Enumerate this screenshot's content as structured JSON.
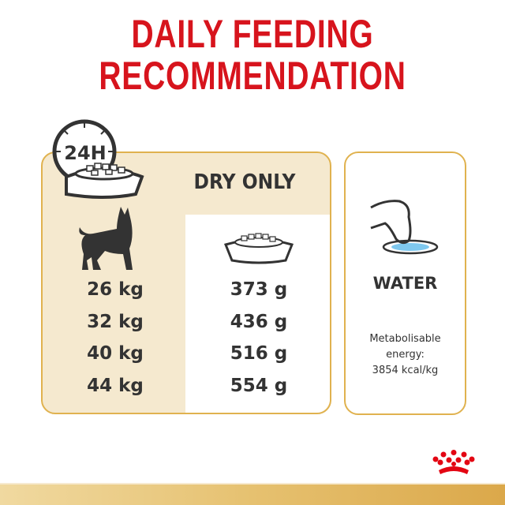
{
  "title": {
    "line1": "DAILY FEEDING",
    "line2": "RECOMMENDATION"
  },
  "clock_label": "24H",
  "dry_only": "DRY ONLY",
  "rows": [
    {
      "weight": "26 kg",
      "amount": "373 g"
    },
    {
      "weight": "32 kg",
      "amount": "436 g"
    },
    {
      "weight": "40 kg",
      "amount": "516 g"
    },
    {
      "weight": "44 kg",
      "amount": "554 g"
    }
  ],
  "water": {
    "label": "WATER",
    "energy_line1": "Metabolisable",
    "energy_line2": "energy:",
    "energy_line3": "3854 kcal/kg"
  },
  "colors": {
    "title": "#d7141d",
    "panel": "#f5e9cf",
    "border": "#e0b24f",
    "text": "#333333",
    "water": "#7fc8ee"
  },
  "logo": "Royal Canin crown"
}
